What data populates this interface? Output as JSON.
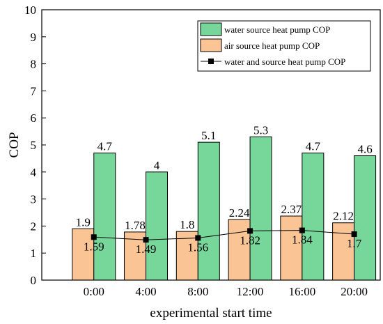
{
  "chart_data": {
    "type": "bar",
    "xlabel": "experimental start time",
    "ylabel": "COP",
    "ylim": [
      0,
      10
    ],
    "yticks": [
      0,
      1,
      2,
      3,
      4,
      5,
      6,
      7,
      8,
      9,
      10
    ],
    "categories": [
      "0:00",
      "4:00",
      "8:00",
      "12:00",
      "16:00",
      "20:00"
    ],
    "grid": false,
    "legend_position": "top-right",
    "series": [
      {
        "name": "water source heat pump COP",
        "kind": "bar",
        "color": "#77d79b",
        "values": [
          4.7,
          4,
          5.1,
          5.3,
          4.7,
          4.6
        ],
        "labels": [
          "4.7",
          "4",
          "5.1",
          "5.3",
          "4.7",
          "4.6"
        ]
      },
      {
        "name": "air source heat pump COP",
        "kind": "bar",
        "color": "#fbc494",
        "values": [
          1.9,
          1.78,
          1.8,
          2.24,
          2.37,
          2.12
        ],
        "labels": [
          "1.9",
          "1.78",
          "1.8",
          "2.24",
          "2.37",
          "2.12"
        ]
      },
      {
        "name": "water and source heat pump COP",
        "kind": "line",
        "color": "#000000",
        "marker": "square",
        "values": [
          1.59,
          1.49,
          1.56,
          1.82,
          1.84,
          1.7
        ],
        "labels": [
          "1.59",
          "1.49",
          "1.56",
          "1.82",
          "1.84",
          "1.7"
        ]
      }
    ]
  }
}
